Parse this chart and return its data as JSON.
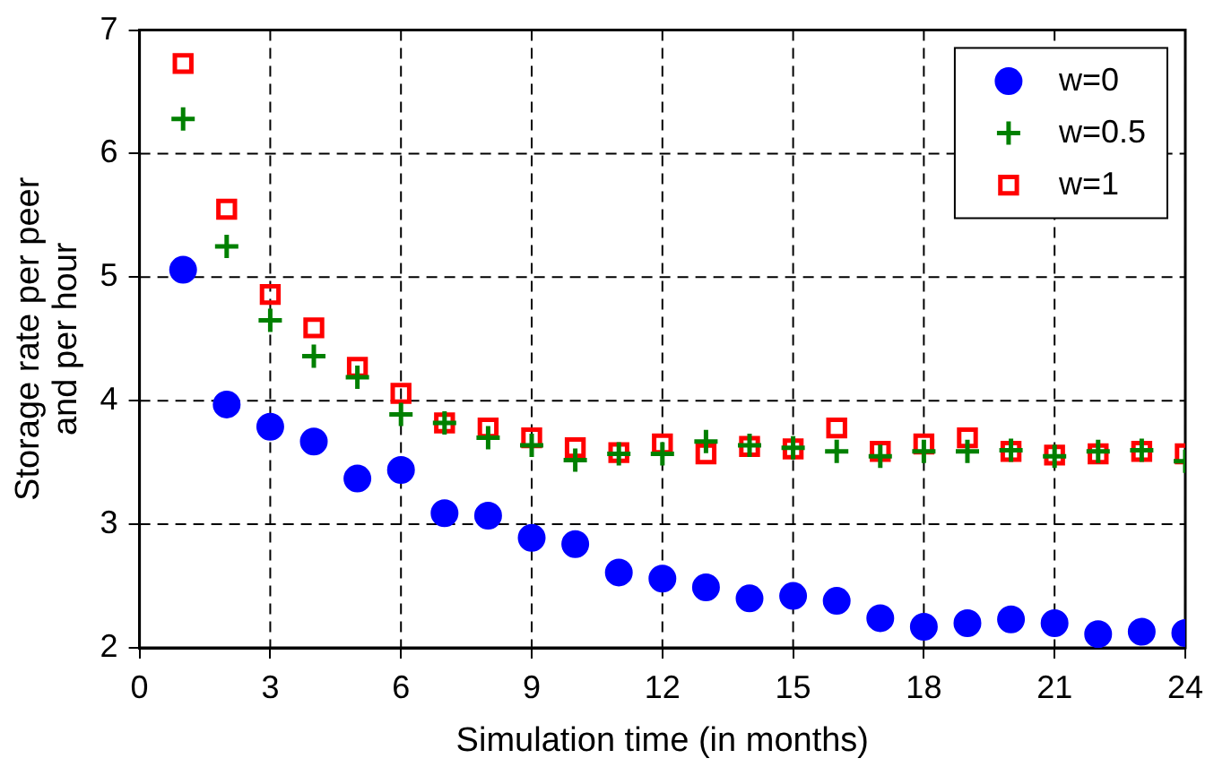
{
  "chart_data": {
    "type": "scatter",
    "xlabel": "Simulation time (in months)",
    "ylabel": "Storage rate per peer\nand per hour",
    "x": [
      1,
      2,
      3,
      4,
      5,
      6,
      7,
      8,
      9,
      10,
      11,
      12,
      13,
      14,
      15,
      16,
      17,
      18,
      19,
      20,
      21,
      22,
      23,
      24
    ],
    "series": [
      {
        "name": "w=0",
        "color": "#0000ff",
        "marker": "circle",
        "values": [
          5.06,
          3.97,
          3.79,
          3.67,
          3.37,
          3.44,
          3.09,
          3.07,
          2.89,
          2.84,
          2.61,
          2.56,
          2.49,
          2.4,
          2.42,
          2.38,
          2.24,
          2.17,
          2.2,
          2.23,
          2.2,
          2.11,
          2.13,
          2.12
        ]
      },
      {
        "name": "w=0.5",
        "color": "#008000",
        "marker": "cross",
        "values": [
          6.28,
          5.25,
          4.65,
          4.36,
          4.19,
          3.89,
          3.82,
          3.7,
          3.64,
          3.52,
          3.57,
          3.57,
          3.67,
          3.64,
          3.62,
          3.59,
          3.55,
          3.59,
          3.59,
          3.6,
          3.55,
          3.59,
          3.6,
          3.51
        ]
      },
      {
        "name": "w=1",
        "color": "#ff0000",
        "marker": "square",
        "values": [
          6.73,
          5.55,
          4.86,
          4.59,
          4.27,
          4.06,
          3.82,
          3.78,
          3.7,
          3.62,
          3.58,
          3.65,
          3.57,
          3.63,
          3.61,
          3.78,
          3.59,
          3.65,
          3.7,
          3.59,
          3.56,
          3.57,
          3.59,
          3.57
        ]
      }
    ],
    "xlim": [
      0,
      24
    ],
    "xticks": [
      0,
      3,
      6,
      9,
      12,
      15,
      18,
      21,
      24
    ],
    "ylim": [
      2,
      7
    ],
    "yticks": [
      2,
      3,
      4,
      5,
      6,
      7
    ],
    "grid": true,
    "line_style": "dashed",
    "legend": "top right"
  }
}
